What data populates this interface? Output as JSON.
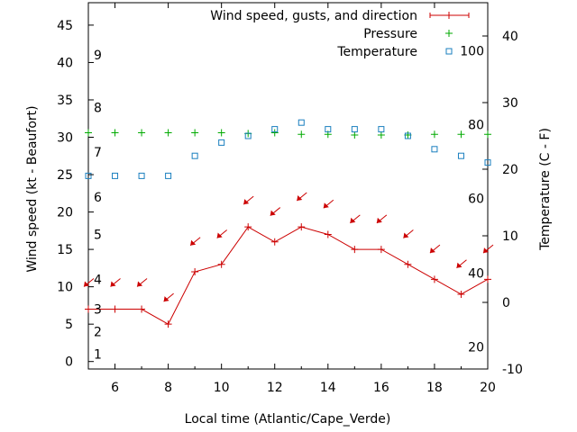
{
  "chart_data": {
    "type": "line",
    "xlabel": "Local time (Atlantic/Cape_Verde)",
    "ylabel": "Wind speed (kt - Beaufort)",
    "y2label": "Temperature (C - F)",
    "xlim": [
      5,
      20
    ],
    "ylim": [
      -1,
      48
    ],
    "y2lim": [
      -10,
      45
    ],
    "x_ticks": [
      6,
      8,
      10,
      12,
      14,
      16,
      18,
      20
    ],
    "y_ticks": [
      0,
      5,
      10,
      15,
      20,
      25,
      30,
      35,
      40,
      45
    ],
    "y2_ticks": [
      -10,
      0,
      10,
      20,
      30,
      40
    ],
    "beaufort_labels": [
      {
        "label": "1",
        "y": 1
      },
      {
        "label": "2",
        "y": 4
      },
      {
        "label": "3",
        "y": 7
      },
      {
        "label": "4",
        "y": 11
      },
      {
        "label": "5",
        "y": 17
      },
      {
        "label": "6",
        "y": 22
      },
      {
        "label": "7",
        "y": 28
      },
      {
        "label": "8",
        "y": 34
      },
      {
        "label": "9",
        "y": 41
      }
    ],
    "fahrenheit_labels": [
      {
        "label": "20",
        "y2": -6.7
      },
      {
        "label": "40",
        "y2": 4.4
      },
      {
        "label": "60",
        "y2": 15.6
      },
      {
        "label": "80",
        "y2": 26.7
      },
      {
        "label": "100",
        "y2": 37.8
      }
    ],
    "legend": {
      "placement": "top-right",
      "entries": [
        {
          "label": "Wind speed, gusts, and direction",
          "symbol": "line-plus",
          "color": "#cc0000"
        },
        {
          "label": "Pressure",
          "symbol": "plus",
          "color": "#00aa00"
        },
        {
          "label": "Temperature",
          "symbol": "square",
          "color": "#1a7fbf"
        }
      ]
    },
    "series": [
      {
        "name": "Wind speed, gusts, and direction",
        "color": "#cc0000",
        "x": [
          5,
          6,
          7,
          8,
          9,
          10,
          11,
          12,
          13,
          14,
          15,
          16,
          17,
          18,
          19,
          20
        ],
        "values": [
          7,
          7,
          7,
          5,
          12,
          13,
          18,
          16,
          18,
          17,
          15,
          15,
          13,
          11,
          9,
          11
        ],
        "direction_arrows_y": [
          10.5,
          10.5,
          10.5,
          8.5,
          16,
          17,
          21.5,
          20,
          22,
          21,
          19,
          19,
          17,
          15,
          13,
          15
        ]
      },
      {
        "name": "Pressure",
        "color": "#00aa00",
        "x": [
          5,
          6,
          7,
          8,
          9,
          10,
          11,
          12,
          13,
          14,
          15,
          16,
          17,
          18,
          19,
          20
        ],
        "values": [
          30.6,
          30.6,
          30.6,
          30.6,
          30.6,
          30.6,
          30.5,
          30.6,
          30.4,
          30.4,
          30.3,
          30.3,
          30.3,
          30.4,
          30.4,
          30.4
        ]
      },
      {
        "name": "Temperature",
        "color": "#1a7fbf",
        "axis": "y2",
        "x": [
          5,
          6,
          7,
          8,
          9,
          10,
          11,
          12,
          13,
          14,
          15,
          16,
          17,
          18,
          19,
          20
        ],
        "values": [
          19,
          19,
          19,
          19,
          22,
          24,
          25,
          26,
          27,
          26,
          26,
          26,
          25,
          23,
          22,
          21
        ]
      }
    ]
  }
}
